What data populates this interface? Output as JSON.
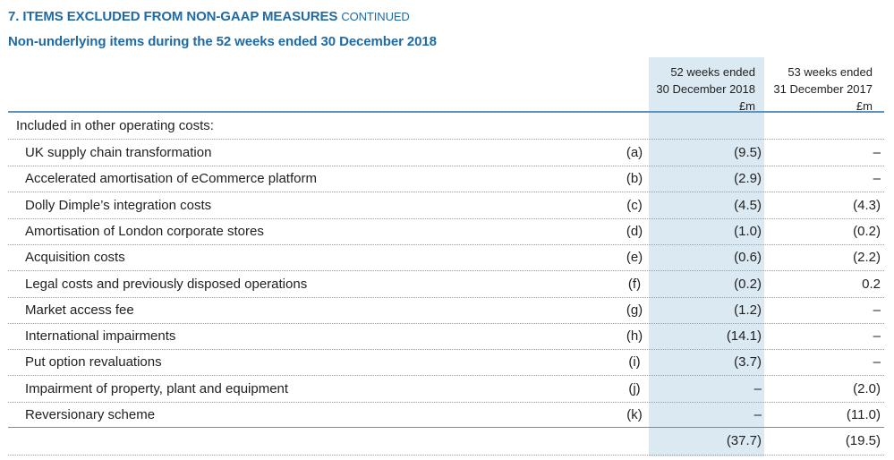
{
  "heading": {
    "title": "7. ITEMS EXCLUDED FROM NON-GAAP MEASURES",
    "continued": "CONTINUED"
  },
  "subheading": "Non-underlying items during the 52 weeks ended 30 December 2018",
  "columns": [
    {
      "line1": "52 weeks ended",
      "line2": "30 December 2018",
      "unit": "£m"
    },
    {
      "line1": "53 weeks ended",
      "line2": "31 December 2017",
      "unit": "£m"
    }
  ],
  "section_label": "Included in other operating costs:",
  "rows": [
    {
      "label": "UK supply chain transformation",
      "note": "(a)",
      "v2018": "(9.5)",
      "v2017": "–"
    },
    {
      "label": "Accelerated amortisation of eCommerce platform",
      "note": "(b)",
      "v2018": "(2.9)",
      "v2017": "–"
    },
    {
      "label": "Dolly Dimple’s integration costs",
      "note": "(c)",
      "v2018": "(4.5)",
      "v2017": "(4.3)"
    },
    {
      "label": "Amortisation of London corporate stores",
      "note": "(d)",
      "v2018": "(1.0)",
      "v2017": "(0.2)"
    },
    {
      "label": "Acquisition costs",
      "note": "(e)",
      "v2018": "(0.6)",
      "v2017": "(2.2)"
    },
    {
      "label": "Legal costs and previously disposed operations",
      "note": "(f)",
      "v2018": "(0.2)",
      "v2017": "0.2"
    },
    {
      "label": "Market access fee",
      "note": "(g)",
      "v2018": "(1.2)",
      "v2017": "–"
    },
    {
      "label": "International impairments",
      "note": "(h)",
      "v2018": "(14.1)",
      "v2017": "–"
    },
    {
      "label": "Put option revaluations",
      "note": "(i)",
      "v2018": "(3.7)",
      "v2017": "–"
    },
    {
      "label": "Impairment of property, plant and equipment",
      "note": "(j)",
      "v2018": "–",
      "v2017": "(2.0)"
    },
    {
      "label": "Reversionary scheme",
      "note": "(k)",
      "v2018": "–",
      "v2017": "(11.0)"
    }
  ],
  "total": {
    "v2018": "(37.7)",
    "v2017": "(19.5)"
  },
  "colors": {
    "heading_blue": "#1f6aa5",
    "column_shade": "#dbe9f3",
    "rule_blue": "#5c93bf"
  }
}
